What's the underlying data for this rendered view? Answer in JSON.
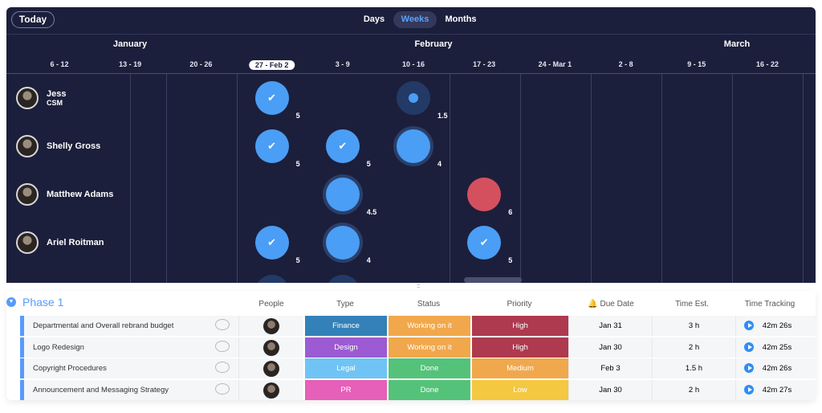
{
  "toolbar": {
    "today": "Today",
    "views": [
      "Days",
      "Weeks",
      "Months"
    ],
    "active_view": "Weeks"
  },
  "months": [
    "January",
    "February",
    "March"
  ],
  "weeks": [
    "6 - 12",
    "13 - 19",
    "20 - 26",
    "27 - Feb 2",
    "3 - 9",
    "10 - 16",
    "17 - 23",
    "24 - Mar 1",
    "2 - 8",
    "9 - 15",
    "16 - 22"
  ],
  "current_week": "27 - Feb 2",
  "people": [
    {
      "name": "Jess",
      "role": "CSM",
      "items": [
        {
          "week": 3,
          "status": "done",
          "value": "5"
        },
        {
          "week": 5,
          "status": "small",
          "value": "1.5"
        }
      ]
    },
    {
      "name": "Shelly Gross",
      "role": "",
      "items": [
        {
          "week": 3,
          "status": "done",
          "value": "5"
        },
        {
          "week": 4,
          "status": "done",
          "value": "5"
        },
        {
          "week": 5,
          "status": "prog",
          "value": "4"
        }
      ]
    },
    {
      "name": "Matthew Adams",
      "role": "",
      "items": [
        {
          "week": 4,
          "status": "prog",
          "value": "4.5"
        },
        {
          "week": 6,
          "status": "stuck",
          "value": "6"
        }
      ]
    },
    {
      "name": "Ariel Roitman",
      "role": "",
      "items": [
        {
          "week": 3,
          "status": "done",
          "value": "5"
        },
        {
          "week": 4,
          "status": "prog",
          "value": "4"
        },
        {
          "week": 6,
          "status": "done",
          "value": "5"
        }
      ]
    }
  ],
  "board": {
    "group": "Phase 1",
    "columns": [
      "People",
      "Type",
      "Status",
      "Priority",
      "Due Date",
      "Time Est.",
      "Time Tracking"
    ],
    "rows": [
      {
        "name": "Departmental and Overall rebrand budget",
        "type": "Finance",
        "status": "Working on it",
        "priority": "High",
        "due": "Jan 31",
        "est": "3 h",
        "track": "42m 26s"
      },
      {
        "name": "Logo Redesign",
        "type": "Design",
        "status": "Working on it",
        "priority": "High",
        "due": "Jan 30",
        "est": "2 h",
        "track": "42m 25s"
      },
      {
        "name": "Copyright Procedures",
        "type": "Legal",
        "status": "Done",
        "priority": "Medium",
        "due": "Feb 3",
        "est": "1.5 h",
        "track": "42m 26s"
      },
      {
        "name": "Announcement and Messaging Strategy",
        "type": "PR",
        "status": "Done",
        "priority": "Low",
        "due": "Jan 30",
        "est": "2 h",
        "track": "42m 27s"
      }
    ]
  },
  "colors": {
    "Finance": "#3381b8",
    "Design": "#9c5ad3",
    "Legal": "#6fc4f5",
    "PR": "#e65fb9",
    "Working on it": "#f1a84c",
    "Done": "#55c27a",
    "High": "#ae3a4f",
    "Medium": "#f1a84c",
    "Low": "#f5c842",
    "timeline_bg": "#1c1f3b",
    "accent": "#579bfc"
  }
}
